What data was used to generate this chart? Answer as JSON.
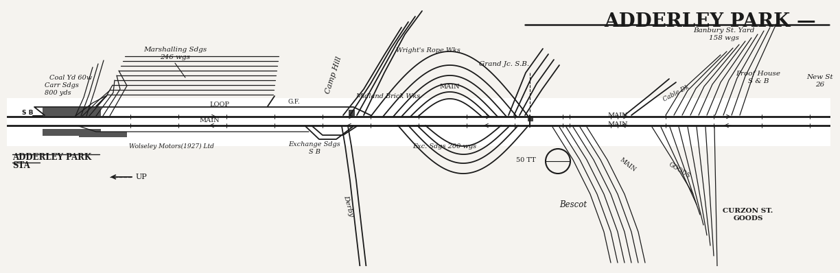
{
  "bg_color": "#f5f3ef",
  "line_color": "#1a1a1a",
  "title": "ADDERLEY PARK —",
  "labels": {
    "marshalling_sdgs": "Marshalling Sdgs\n246 wgs",
    "coal_yd": "Coal Yd 60w",
    "carr_sdgs": "Carr Sdgs\n800 yds",
    "sb_label": "S B",
    "loop_label": "LOOP",
    "main_label": "MAIN",
    "adderley_park": "ADDERLEY PARK",
    "sta": "STA",
    "up_label": "←—— UP",
    "wolseley": "Wolseley Motors(1927) Ltd",
    "camp_hill": "Camp Hill",
    "wrights_rope": "Wright's Rope Wks",
    "midland_brick": "Midland Brick Wks",
    "exchange_sdgs": "Exchange Sdgs\nS B",
    "derby": "Derby",
    "exc_sdgs": "Exc. Sdgs 200 wgs",
    "grand_jc": "Grand Jc. S.B.",
    "50tt": "50 TT",
    "bescot": "Bescot",
    "banbury_st": "Banbury St. Yard\n158 wgs",
    "cable_dk": "Cable Dk",
    "proof_house": "Proof House\nS & B",
    "new_st": "New St\n26",
    "curzon_st": "CURZON ST.\nGOODS",
    "main_r1": "MAIN",
    "main_r2": "MAIN",
    "gf_label": "G.F.",
    "goods_diag": "GOODS",
    "main_diag": "MAIN"
  }
}
